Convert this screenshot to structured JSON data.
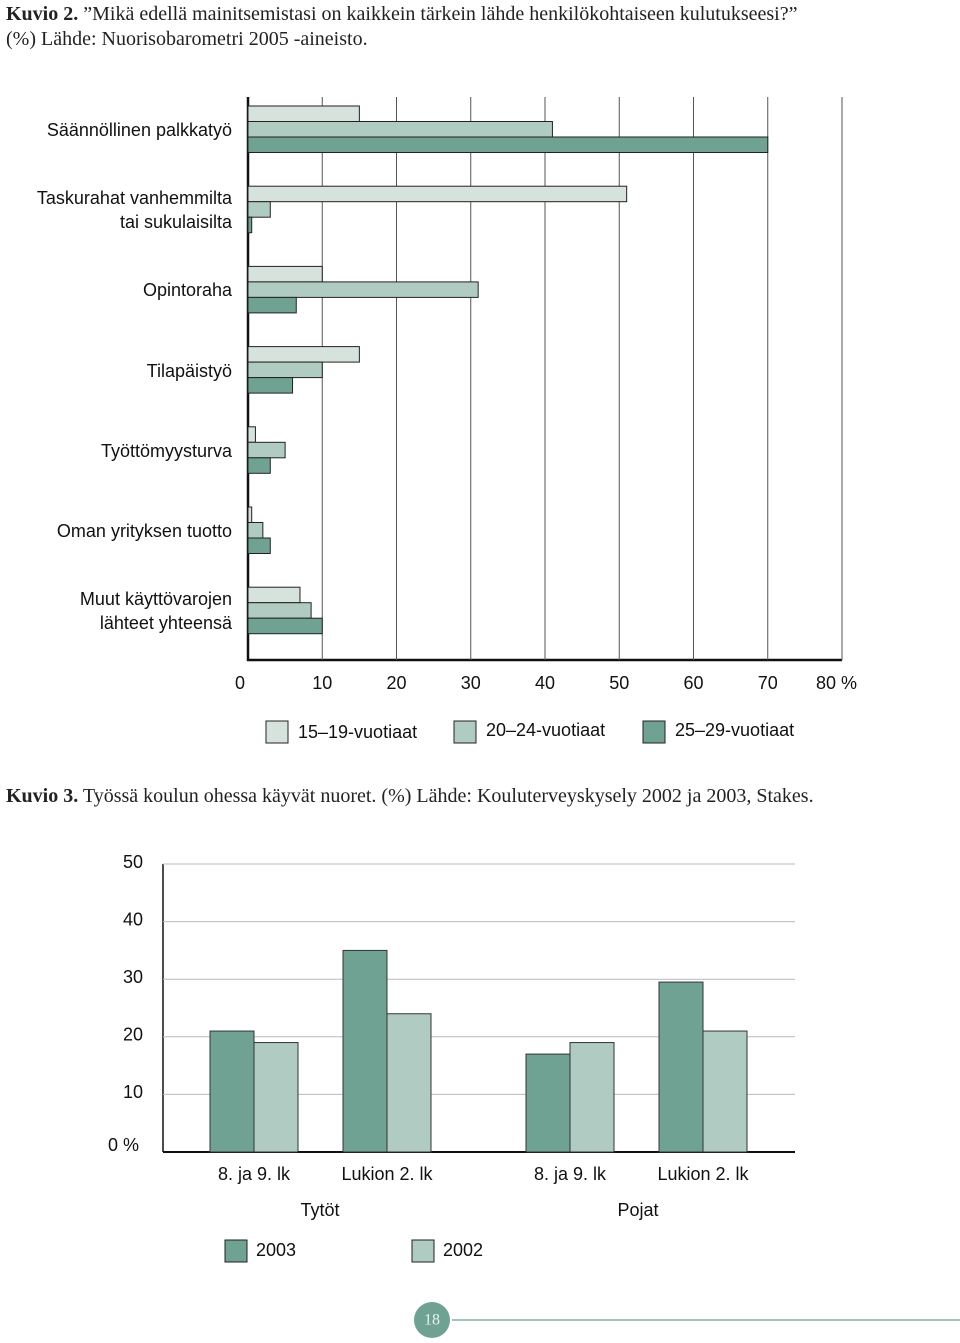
{
  "chart_data": [
    {
      "type": "barh",
      "label": "Kuvio 2.",
      "title": "”Mikä edellä mainitsemistasi on kaikkein tärkein lähde henkilökohtaiseen kulutukseesi?”\n(%) Lähde: Nuorisobarometri 2005 -aineisto.",
      "categories": [
        "Säännöllinen palkkatyö",
        "Taskurahat vanhemmilta\ntai sukulaisilta",
        "Opintoraha",
        "Tilapäistyö",
        "Työttömyysturva",
        "Oman yrityksen tuotto",
        "Muut käyttövarojen\nlähteet yhteensä"
      ],
      "series": [
        {
          "name": "15–19-vuotiaat",
          "color": "#d5e3dc",
          "values": [
            15,
            51,
            10,
            15,
            1,
            0.5,
            7
          ]
        },
        {
          "name": "20–24-vuotiaat",
          "color": "#b0cbc2",
          "values": [
            41,
            3,
            31,
            10,
            5,
            2,
            8.5
          ]
        },
        {
          "name": "25–29-vuotiaat",
          "color": "#6fa293",
          "values": [
            70,
            0.5,
            6.5,
            6,
            3,
            3,
            10
          ]
        }
      ],
      "xlim": [
        0,
        80
      ],
      "xticks": [
        0,
        10,
        20,
        30,
        40,
        50,
        60,
        70,
        {
          "value": 80,
          "label": "80 %"
        }
      ],
      "grid": true
    },
    {
      "type": "bar",
      "label": "Kuvio 3.",
      "title": "Työssä koulun ohessa käyvät nuoret. (%) Lähde: Kouluterveyskysely 2002 ja 2003, Stakes.",
      "categories": [
        "8. ja 9. lk",
        "Lukion 2. lk",
        "8. ja 9. lk",
        "Lukion 2. lk"
      ],
      "groups": [
        "Tytöt",
        "Pojat"
      ],
      "series": [
        {
          "name": "2003",
          "color": "#6fa293",
          "values": [
            21,
            35,
            17,
            29.5
          ]
        },
        {
          "name": "2002",
          "color": "#b0cbc2",
          "values": [
            19,
            24,
            19,
            21
          ]
        }
      ],
      "ylim": [
        0,
        50
      ],
      "yticks": [
        {
          "value": 0,
          "label": "0 %"
        },
        10,
        20,
        30,
        40,
        50
      ],
      "grid": true
    }
  ],
  "page_number": "18"
}
